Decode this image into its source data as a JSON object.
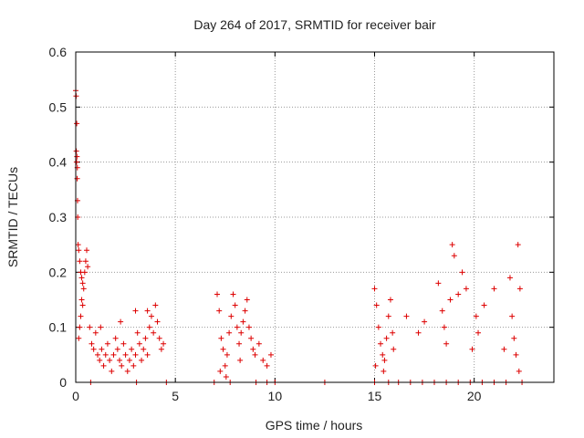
{
  "chart_data": {
    "type": "scatter",
    "title": "Day 264 of 2017, SRMTID for receiver bair",
    "xlabel": "GPS time / hours",
    "ylabel": "SRMTID / TECUs",
    "xlim": [
      0,
      24
    ],
    "ylim": [
      0,
      0.6
    ],
    "xticks": [
      0,
      5,
      10,
      15,
      20
    ],
    "yticks": [
      0,
      0.1,
      0.2,
      0.3,
      0.4,
      0.5,
      0.6
    ],
    "xtick_labels": [
      "0",
      "5",
      "10",
      "15",
      "20"
    ],
    "ytick_labels": [
      "0",
      "0.1",
      "0.2",
      "0.3",
      "0.4",
      "0.5",
      "0.6"
    ],
    "grid": true,
    "marker": "+",
    "marker_color": "#dd0000",
    "series": [
      {
        "name": "SRMTID",
        "points": [
          [
            0.0,
            0.53
          ],
          [
            0.02,
            0.52
          ],
          [
            0.05,
            0.47
          ],
          [
            0.03,
            0.42
          ],
          [
            0.06,
            0.41
          ],
          [
            0.04,
            0.4
          ],
          [
            0.08,
            0.39
          ],
          [
            0.07,
            0.37
          ],
          [
            0.09,
            0.33
          ],
          [
            0.1,
            0.3
          ],
          [
            0.12,
            0.25
          ],
          [
            0.15,
            0.24
          ],
          [
            0.2,
            0.22
          ],
          [
            0.25,
            0.2
          ],
          [
            0.3,
            0.19
          ],
          [
            0.35,
            0.18
          ],
          [
            0.4,
            0.17
          ],
          [
            0.45,
            0.2
          ],
          [
            0.5,
            0.22
          ],
          [
            0.55,
            0.24
          ],
          [
            0.6,
            0.21
          ],
          [
            0.3,
            0.15
          ],
          [
            0.35,
            0.14
          ],
          [
            0.2,
            0.1
          ],
          [
            0.25,
            0.12
          ],
          [
            0.15,
            0.08
          ],
          [
            0.7,
            0.1
          ],
          [
            0.8,
            0.07
          ],
          [
            0.9,
            0.06
          ],
          [
            1.0,
            0.09
          ],
          [
            1.1,
            0.05
          ],
          [
            1.2,
            0.04
          ],
          [
            1.3,
            0.06
          ],
          [
            1.4,
            0.03
          ],
          [
            1.5,
            0.05
          ],
          [
            1.6,
            0.07
          ],
          [
            1.7,
            0.04
          ],
          [
            1.8,
            0.02
          ],
          [
            1.9,
            0.05
          ],
          [
            2.0,
            0.08
          ],
          [
            2.1,
            0.06
          ],
          [
            2.2,
            0.04
          ],
          [
            2.3,
            0.03
          ],
          [
            2.4,
            0.07
          ],
          [
            2.5,
            0.05
          ],
          [
            2.6,
            0.02
          ],
          [
            2.7,
            0.04
          ],
          [
            2.8,
            0.06
          ],
          [
            2.9,
            0.03
          ],
          [
            3.0,
            0.05
          ],
          [
            3.1,
            0.09
          ],
          [
            3.2,
            0.07
          ],
          [
            3.3,
            0.04
          ],
          [
            3.4,
            0.06
          ],
          [
            3.5,
            0.08
          ],
          [
            3.6,
            0.05
          ],
          [
            3.7,
            0.1
          ],
          [
            3.8,
            0.12
          ],
          [
            3.9,
            0.09
          ],
          [
            4.0,
            0.14
          ],
          [
            4.1,
            0.11
          ],
          [
            4.2,
            0.08
          ],
          [
            4.3,
            0.06
          ],
          [
            4.4,
            0.07
          ],
          [
            1.25,
            0.1
          ],
          [
            2.25,
            0.11
          ],
          [
            3.0,
            0.13
          ],
          [
            3.6,
            0.13
          ],
          [
            0.75,
            0.0
          ],
          [
            3.05,
            0.0
          ],
          [
            4.55,
            0.0
          ],
          [
            7.1,
            0.16
          ],
          [
            7.2,
            0.13
          ],
          [
            7.3,
            0.08
          ],
          [
            7.4,
            0.06
          ],
          [
            7.5,
            0.03
          ],
          [
            7.6,
            0.05
          ],
          [
            7.7,
            0.09
          ],
          [
            7.8,
            0.12
          ],
          [
            7.9,
            0.16
          ],
          [
            8.0,
            0.14
          ],
          [
            8.1,
            0.1
          ],
          [
            8.2,
            0.07
          ],
          [
            8.3,
            0.09
          ],
          [
            8.4,
            0.11
          ],
          [
            8.5,
            0.13
          ],
          [
            8.6,
            0.15
          ],
          [
            8.7,
            0.1
          ],
          [
            8.8,
            0.08
          ],
          [
            8.9,
            0.06
          ],
          [
            9.0,
            0.05
          ],
          [
            9.2,
            0.07
          ],
          [
            9.4,
            0.04
          ],
          [
            9.6,
            0.03
          ],
          [
            9.8,
            0.05
          ],
          [
            7.25,
            0.02
          ],
          [
            7.55,
            0.01
          ],
          [
            8.25,
            0.04
          ],
          [
            6.95,
            0.0
          ],
          [
            7.75,
            0.0
          ],
          [
            9.05,
            0.0
          ],
          [
            9.6,
            0.0
          ],
          [
            10.0,
            0.0
          ],
          [
            12.5,
            0.0
          ],
          [
            15.0,
            0.17
          ],
          [
            15.1,
            0.14
          ],
          [
            15.2,
            0.1
          ],
          [
            15.3,
            0.07
          ],
          [
            15.4,
            0.05
          ],
          [
            15.5,
            0.04
          ],
          [
            15.6,
            0.08
          ],
          [
            15.7,
            0.12
          ],
          [
            15.8,
            0.15
          ],
          [
            15.9,
            0.09
          ],
          [
            15.95,
            0.06
          ],
          [
            15.05,
            0.03
          ],
          [
            15.45,
            0.02
          ],
          [
            16.6,
            0.12
          ],
          [
            17.2,
            0.09
          ],
          [
            17.5,
            0.11
          ],
          [
            18.2,
            0.18
          ],
          [
            18.4,
            0.13
          ],
          [
            18.5,
            0.1
          ],
          [
            18.6,
            0.07
          ],
          [
            18.8,
            0.15
          ],
          [
            18.9,
            0.25
          ],
          [
            19.0,
            0.23
          ],
          [
            19.2,
            0.16
          ],
          [
            19.4,
            0.2
          ],
          [
            19.6,
            0.17
          ],
          [
            19.9,
            0.06
          ],
          [
            20.1,
            0.12
          ],
          [
            20.2,
            0.09
          ],
          [
            20.5,
            0.14
          ],
          [
            21.0,
            0.17
          ],
          [
            21.5,
            0.06
          ],
          [
            21.8,
            0.19
          ],
          [
            21.9,
            0.12
          ],
          [
            22.0,
            0.08
          ],
          [
            22.1,
            0.05
          ],
          [
            22.2,
            0.25
          ],
          [
            22.3,
            0.17
          ],
          [
            22.25,
            0.02
          ],
          [
            15.0,
            0.0
          ],
          [
            15.7,
            0.0
          ],
          [
            16.2,
            0.0
          ],
          [
            16.8,
            0.0
          ],
          [
            17.4,
            0.0
          ],
          [
            18.0,
            0.0
          ],
          [
            18.6,
            0.0
          ],
          [
            19.2,
            0.0
          ],
          [
            19.8,
            0.0
          ],
          [
            20.4,
            0.0
          ],
          [
            21.0,
            0.0
          ],
          [
            21.6,
            0.0
          ],
          [
            22.4,
            0.0
          ]
        ]
      }
    ]
  }
}
